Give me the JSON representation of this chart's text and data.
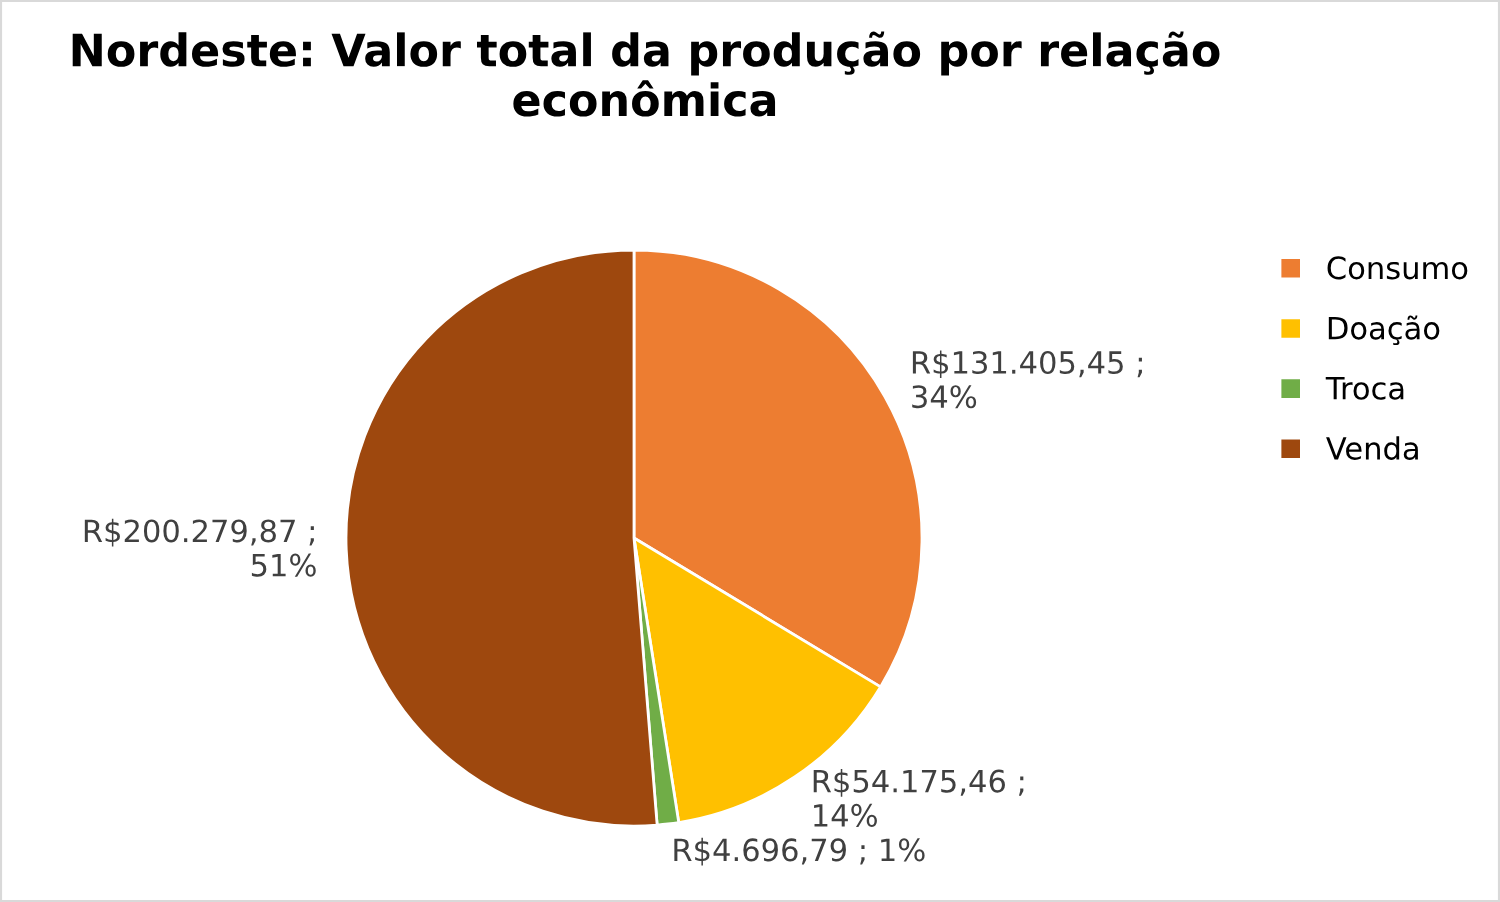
{
  "chart_data": {
    "type": "pie",
    "title": "Nordeste: Valor total da produção por relação\neconômica",
    "categories": [
      "Consumo",
      "Doação",
      "Troca",
      "Venda"
    ],
    "values": [
      131405.45,
      54175.46,
      4696.79,
      200279.87
    ],
    "colors": [
      "#ed7d31",
      "#ffc000",
      "#70ad47",
      "#9e480e"
    ],
    "value_labels": [
      "R$131.405,45 ;\n34%",
      "R$54.175,46 ;\n14%",
      "R$4.696,79 ; 1%",
      "R$200.279,87 ;\n51%"
    ],
    "legend": "right"
  }
}
